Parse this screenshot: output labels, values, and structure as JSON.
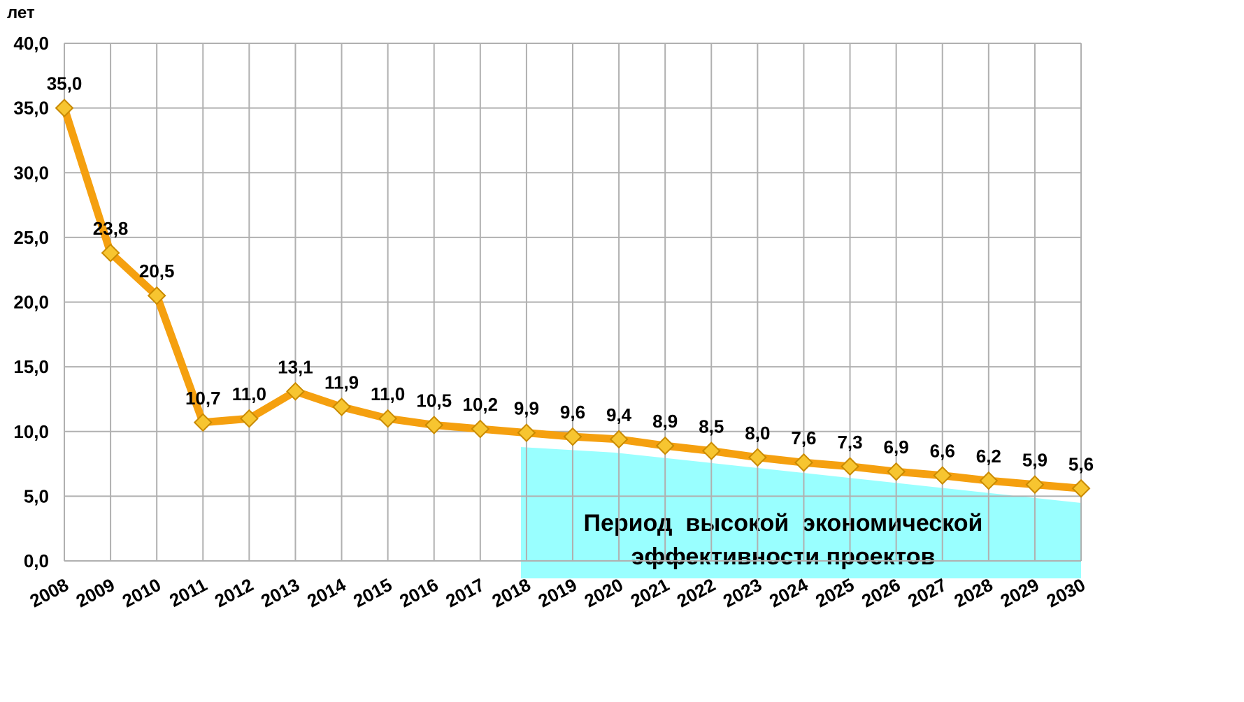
{
  "chart_data": {
    "type": "line",
    "y_label": "лет",
    "categories": [
      "2008",
      "2009",
      "2010",
      "2011",
      "2012",
      "2013",
      "2014",
      "2015",
      "2016",
      "2017",
      "2018",
      "2019",
      "2020",
      "2021",
      "2022",
      "2023",
      "2024",
      "2025",
      "2026",
      "2027",
      "2028",
      "2029",
      "2030"
    ],
    "series": [
      {
        "name": null,
        "color": "#f5a00f",
        "values": [
          35.0,
          23.8,
          20.5,
          10.7,
          11.0,
          13.1,
          11.9,
          11.0,
          10.5,
          10.2,
          9.9,
          9.6,
          9.4,
          8.9,
          8.5,
          8.0,
          7.6,
          7.3,
          6.9,
          6.6,
          6.2,
          5.9,
          5.6
        ],
        "value_labels": [
          "35,0",
          "23,8",
          "20,5",
          "10,7",
          "11,0",
          "13,1",
          "11,9",
          "11,0",
          "10,5",
          "10,2",
          "9,9",
          "9,6",
          "9,4",
          "8,9",
          "8,5",
          "8,0",
          "7,6",
          "7,3",
          "6,9",
          "6,6",
          "6,2",
          "5,9",
          "5,6"
        ]
      }
    ],
    "ylim": [
      0,
      40
    ],
    "yticks": [
      {
        "value": 0,
        "label": "0,0"
      },
      {
        "value": 5,
        "label": "5,0"
      },
      {
        "value": 10,
        "label": "10,0"
      },
      {
        "value": 15,
        "label": "15,0"
      },
      {
        "value": 20,
        "label": "20,0"
      },
      {
        "value": 25,
        "label": "25,0"
      },
      {
        "value": 30,
        "label": "30,0"
      },
      {
        "value": 35,
        "label": "35,0"
      },
      {
        "value": 40,
        "label": "40,0"
      }
    ],
    "grid": true,
    "annotation": [
      "Период  высокой  экономической",
      "эффективности проектов"
    ]
  }
}
